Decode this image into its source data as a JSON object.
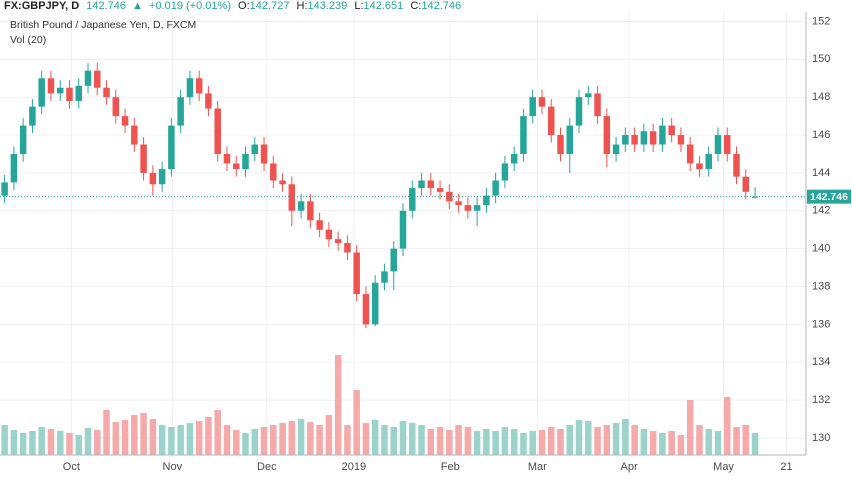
{
  "header": {
    "symbol": "FX:GBPJPY, D",
    "price": "142.746",
    "arrow": "▲",
    "change": "+0.019 (+0.01%)",
    "o_label": "O:",
    "o": "142.727",
    "h_label": "H:",
    "h": "143.239",
    "l_label": "L:",
    "l": "142.651",
    "c_label": "C:",
    "c": "142.746"
  },
  "chart_data": {
    "type": "candlestick",
    "title": "British Pound / Japanese Yen, D, FXCM",
    "volume_label": "Vol (20)",
    "up_color": "#26a69a",
    "down_color": "#ef5350",
    "volume_up_color": "#9bd3cb",
    "volume_down_color": "#f5a9a9",
    "last_price": 142.746,
    "last_price_label": "142.746",
    "ylim": [
      129.1,
      152.5
    ],
    "yticks": [
      130,
      132,
      134,
      136,
      138,
      140,
      142,
      144,
      146,
      148,
      150,
      152
    ],
    "volume_ylim": [
      0,
      115
    ],
    "grid": true,
    "xlim": [
      -0.5,
      86.5
    ],
    "xticks": [
      {
        "value": 7.2,
        "label": "Oct"
      },
      {
        "value": 18.1,
        "label": "Nov"
      },
      {
        "value": 28.3,
        "label": "Dec"
      },
      {
        "value": 37.7,
        "label": "2019"
      },
      {
        "value": 48.1,
        "label": "Feb"
      },
      {
        "value": 57.5,
        "label": "Mar"
      },
      {
        "value": 67.4,
        "label": "Apr"
      },
      {
        "value": 77.6,
        "label": "May"
      },
      {
        "value": 84.4,
        "label": "21"
      }
    ],
    "open": [
      142.8,
      143.5,
      145,
      146.5,
      147.5,
      149,
      148.2,
      148.5,
      147.8,
      148.6,
      149.4,
      148.5,
      148,
      147,
      146.5,
      145.5,
      144,
      143.4,
      144.2,
      146.5,
      148,
      149,
      148.2,
      147.4,
      145,
      144.5,
      144.2,
      145,
      145.5,
      144.5,
      143.6,
      143.4,
      142,
      142.5,
      141.5,
      141,
      140.5,
      140.3,
      139.8,
      137.6,
      136,
      138.2,
      138.8,
      140,
      142,
      143.2,
      143.6,
      143.2,
      143,
      142.5,
      142.3,
      142,
      142.3,
      142.8,
      143.6,
      144.5,
      145,
      147,
      148,
      147.5,
      146,
      145,
      146.5,
      148,
      148.2,
      147,
      145,
      145.5,
      146,
      145.5,
      146.2,
      145.5,
      146.5,
      146,
      145.5,
      144.5,
      144.2,
      145,
      146,
      145,
      143.8,
      142.727
    ],
    "high": [
      143.9,
      145.4,
      146.9,
      147.9,
      149.4,
      149.4,
      148.9,
      148.9,
      149.0,
      149.8,
      149.8,
      148.9,
      148.4,
      147.4,
      146.9,
      145.9,
      144.4,
      144.6,
      146.9,
      148.4,
      149.4,
      149.4,
      148.6,
      147.8,
      145.4,
      144.9,
      145.4,
      145.9,
      145.9,
      144.9,
      144.0,
      143.8,
      142.9,
      142.9,
      141.9,
      141.4,
      140.9,
      140.7,
      140.2,
      138.0,
      138.6,
      139.2,
      140.4,
      142.4,
      143.6,
      144.0,
      144.0,
      143.6,
      143.4,
      142.9,
      142.7,
      142.7,
      143.2,
      144.0,
      144.9,
      145.4,
      147.4,
      148.4,
      148.4,
      147.9,
      146.4,
      146.9,
      148.4,
      148.6,
      148.6,
      147.4,
      145.9,
      146.4,
      146.4,
      146.6,
      146.6,
      146.9,
      146.9,
      146.4,
      145.9,
      144.9,
      145.4,
      146.4,
      146.4,
      145.4,
      144.2,
      143.239
    ],
    "low": [
      142.4,
      143.1,
      144.6,
      146.1,
      147.1,
      147.8,
      147.8,
      147.4,
      147.4,
      148.2,
      148.1,
      147.6,
      146.6,
      146.1,
      145.1,
      143.6,
      142.8,
      143.0,
      143.8,
      146.1,
      147.6,
      147.8,
      147.0,
      144.6,
      144.1,
      143.8,
      143.8,
      144.6,
      144.1,
      143.2,
      143.0,
      141.2,
      141.6,
      141.1,
      140.6,
      140.1,
      139.9,
      139.4,
      137.2,
      135.8,
      135.9,
      137.8,
      137.8,
      139.6,
      141.6,
      142.8,
      142.8,
      142.6,
      142.1,
      141.9,
      141.6,
      141.2,
      141.9,
      142.4,
      143.2,
      144.1,
      144.6,
      146.6,
      147.1,
      145.6,
      144.6,
      144.0,
      146.1,
      147.6,
      146.6,
      144.3,
      144.6,
      145.1,
      145.1,
      145.1,
      145.1,
      145.1,
      145.6,
      145.1,
      144.1,
      143.8,
      143.8,
      144.6,
      144.6,
      143.4,
      142.6,
      142.651
    ],
    "close": [
      143.5,
      145,
      146.5,
      147.5,
      149,
      148.2,
      148.5,
      147.8,
      148.6,
      149.4,
      148.5,
      148,
      147,
      146.5,
      145.5,
      144,
      143.4,
      144.2,
      146.5,
      148,
      149,
      148.2,
      147.4,
      145,
      144.5,
      144.2,
      145,
      145.5,
      144.5,
      143.6,
      143.4,
      142,
      142.5,
      141.5,
      141,
      140.5,
      140.3,
      139.8,
      137.6,
      136,
      138.2,
      138.8,
      140,
      142,
      143.2,
      143.6,
      143.2,
      143,
      142.5,
      142.3,
      142,
      142.3,
      142.8,
      143.6,
      144.5,
      145,
      147,
      148,
      147.5,
      146,
      145,
      146.5,
      148,
      148.2,
      147,
      145,
      145.5,
      146,
      145.5,
      146.2,
      145.5,
      146.5,
      146,
      145.5,
      144.5,
      144.2,
      145,
      146,
      145,
      143.8,
      143,
      142.746
    ],
    "volume": [
      30,
      25,
      22,
      24,
      28,
      26,
      24,
      22,
      20,
      27,
      25,
      45,
      33,
      35,
      40,
      42,
      36,
      30,
      28,
      30,
      32,
      34,
      38,
      45,
      30,
      25,
      22,
      26,
      28,
      30,
      32,
      34,
      36,
      33,
      30,
      40,
      100,
      30,
      65,
      32,
      35,
      30,
      28,
      34,
      32,
      30,
      26,
      28,
      25,
      30,
      28,
      24,
      26,
      24,
      28,
      26,
      22,
      24,
      25,
      28,
      26,
      30,
      35,
      34,
      28,
      30,
      32,
      36,
      30,
      26,
      24,
      22,
      24,
      20,
      55,
      30,
      26,
      24,
      58,
      28,
      30,
      22
    ]
  }
}
